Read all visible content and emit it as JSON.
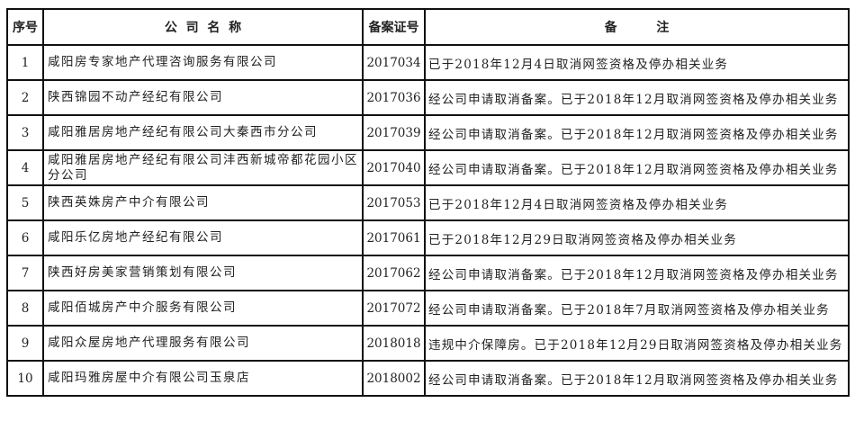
{
  "table": {
    "headers": [
      "序号",
      "公  司  名  称",
      "备案证号",
      "备         注"
    ],
    "rows": [
      {
        "index": "1",
        "company": "咸阳房专家地产代理咨询服务有限公司",
        "record_no": "2017034",
        "remark": "已于2018年12月4日取消网签资格及停办相关业务"
      },
      {
        "index": "2",
        "company": "陕西锦园不动产经纪有限公司",
        "record_no": "2017036",
        "remark": "经公司申请取消备案。已于2018年12月取消网签资格及停办相关业务"
      },
      {
        "index": "3",
        "company": "咸阳雅居房地产经纪有限公司大秦西市分公司",
        "record_no": "2017039",
        "remark": "经公司申请取消备案。已于2018年12月取消网签资格及停办相关业务"
      },
      {
        "index": "4",
        "company": "咸阳雅居房地产经纪有限公司沣西新城帝都花园小区分公司",
        "record_no": "2017040",
        "remark": "经公司申请取消备案。已于2018年12月取消网签资格及停办相关业务"
      },
      {
        "index": "5",
        "company": "陕西英姝房产中介有限公司",
        "record_no": "2017053",
        "remark": "已于2018年12月4日取消网签资格及停办相关业务"
      },
      {
        "index": "6",
        "company": "咸阳乐亿房地产经纪有限公司",
        "record_no": "2017061",
        "remark": "已于2018年12月29日取消网签资格及停办相关业务"
      },
      {
        "index": "7",
        "company": "陕西好房美家营销策划有限公司",
        "record_no": "2017062",
        "remark": "经公司申请取消备案。已于2018年12月取消网签资格及停办相关业务"
      },
      {
        "index": "8",
        "company": "咸阳佰城房产中介服务有限公司",
        "record_no": "2017072",
        "remark": "经公司申请取消备案。已于2018年7月取消网签资格及停办相关业务"
      },
      {
        "index": "9",
        "company": "咸阳众屋房地产代理服务有限公司",
        "record_no": "2018018",
        "remark": "违规中介保障房。已于2018年12月29日取消网签资格及停办相关业务"
      },
      {
        "index": "10",
        "company": "咸阳玛雅房屋中介有限公司玉泉店",
        "record_no": "2018002",
        "remark": "经公司申请取消备案。已于2018年12月取消网签资格及停办相关业务"
      }
    ]
  }
}
